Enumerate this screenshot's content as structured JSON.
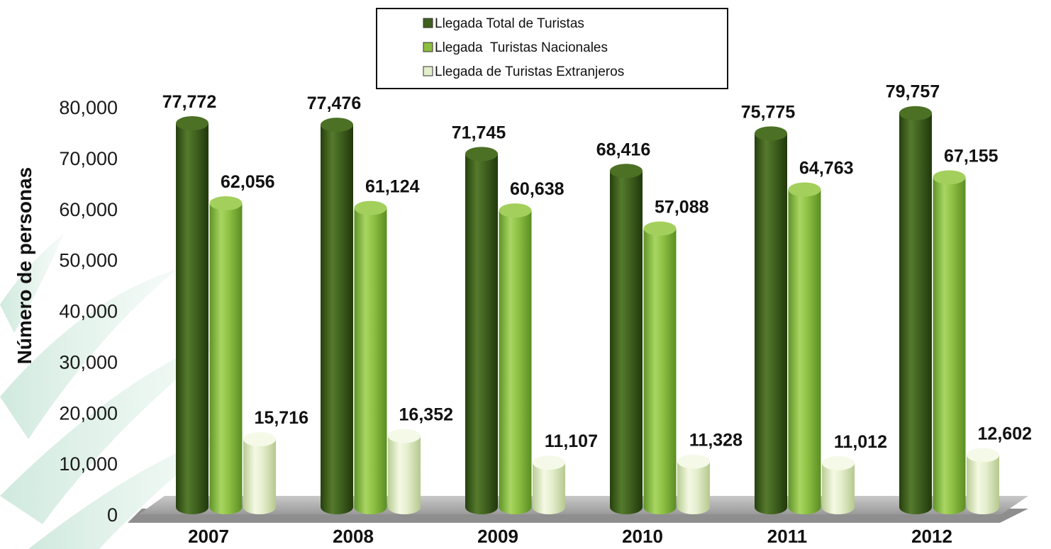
{
  "chart_data": {
    "type": "bar",
    "title": "",
    "xlabel": "",
    "ylabel": "Número de personas",
    "ylim": [
      0,
      80000
    ],
    "yticks": [
      0,
      10000,
      20000,
      30000,
      40000,
      50000,
      60000,
      70000,
      80000
    ],
    "ytick_labels": [
      "0",
      "10,000",
      "20,000",
      "30,000",
      "40,000",
      "50,000",
      "60,000",
      "70,000",
      "80,000"
    ],
    "categories": [
      "2007",
      "2008",
      "2009",
      "2010",
      "2011",
      "2012"
    ],
    "series": [
      {
        "name": "Llegada Total de Turistas",
        "color": "#3f5f1c",
        "values": [
          77772,
          77476,
          71745,
          68416,
          75775,
          79757
        ],
        "labels": [
          "77,772",
          "77,476",
          "71,745",
          "68,416",
          "75,775",
          "79,757"
        ]
      },
      {
        "name": "Llegada  Turistas Nacionales",
        "color": "#8cbf3f",
        "values": [
          62056,
          61124,
          60638,
          57088,
          64763,
          67155
        ],
        "labels": [
          "62,056",
          "61,124",
          "60,638",
          "57,088",
          "64,763",
          "67,155"
        ]
      },
      {
        "name": "Llegada de Turistas Extranjeros",
        "color": "#e3eecb",
        "values": [
          15716,
          16352,
          11107,
          11328,
          11012,
          12602
        ],
        "labels": [
          "15,716",
          "16,352",
          "11,107",
          "11,328",
          "11,012",
          "12,602"
        ]
      }
    ],
    "legend_position": "top-center",
    "grid": false,
    "style": "3d-cylinder"
  }
}
